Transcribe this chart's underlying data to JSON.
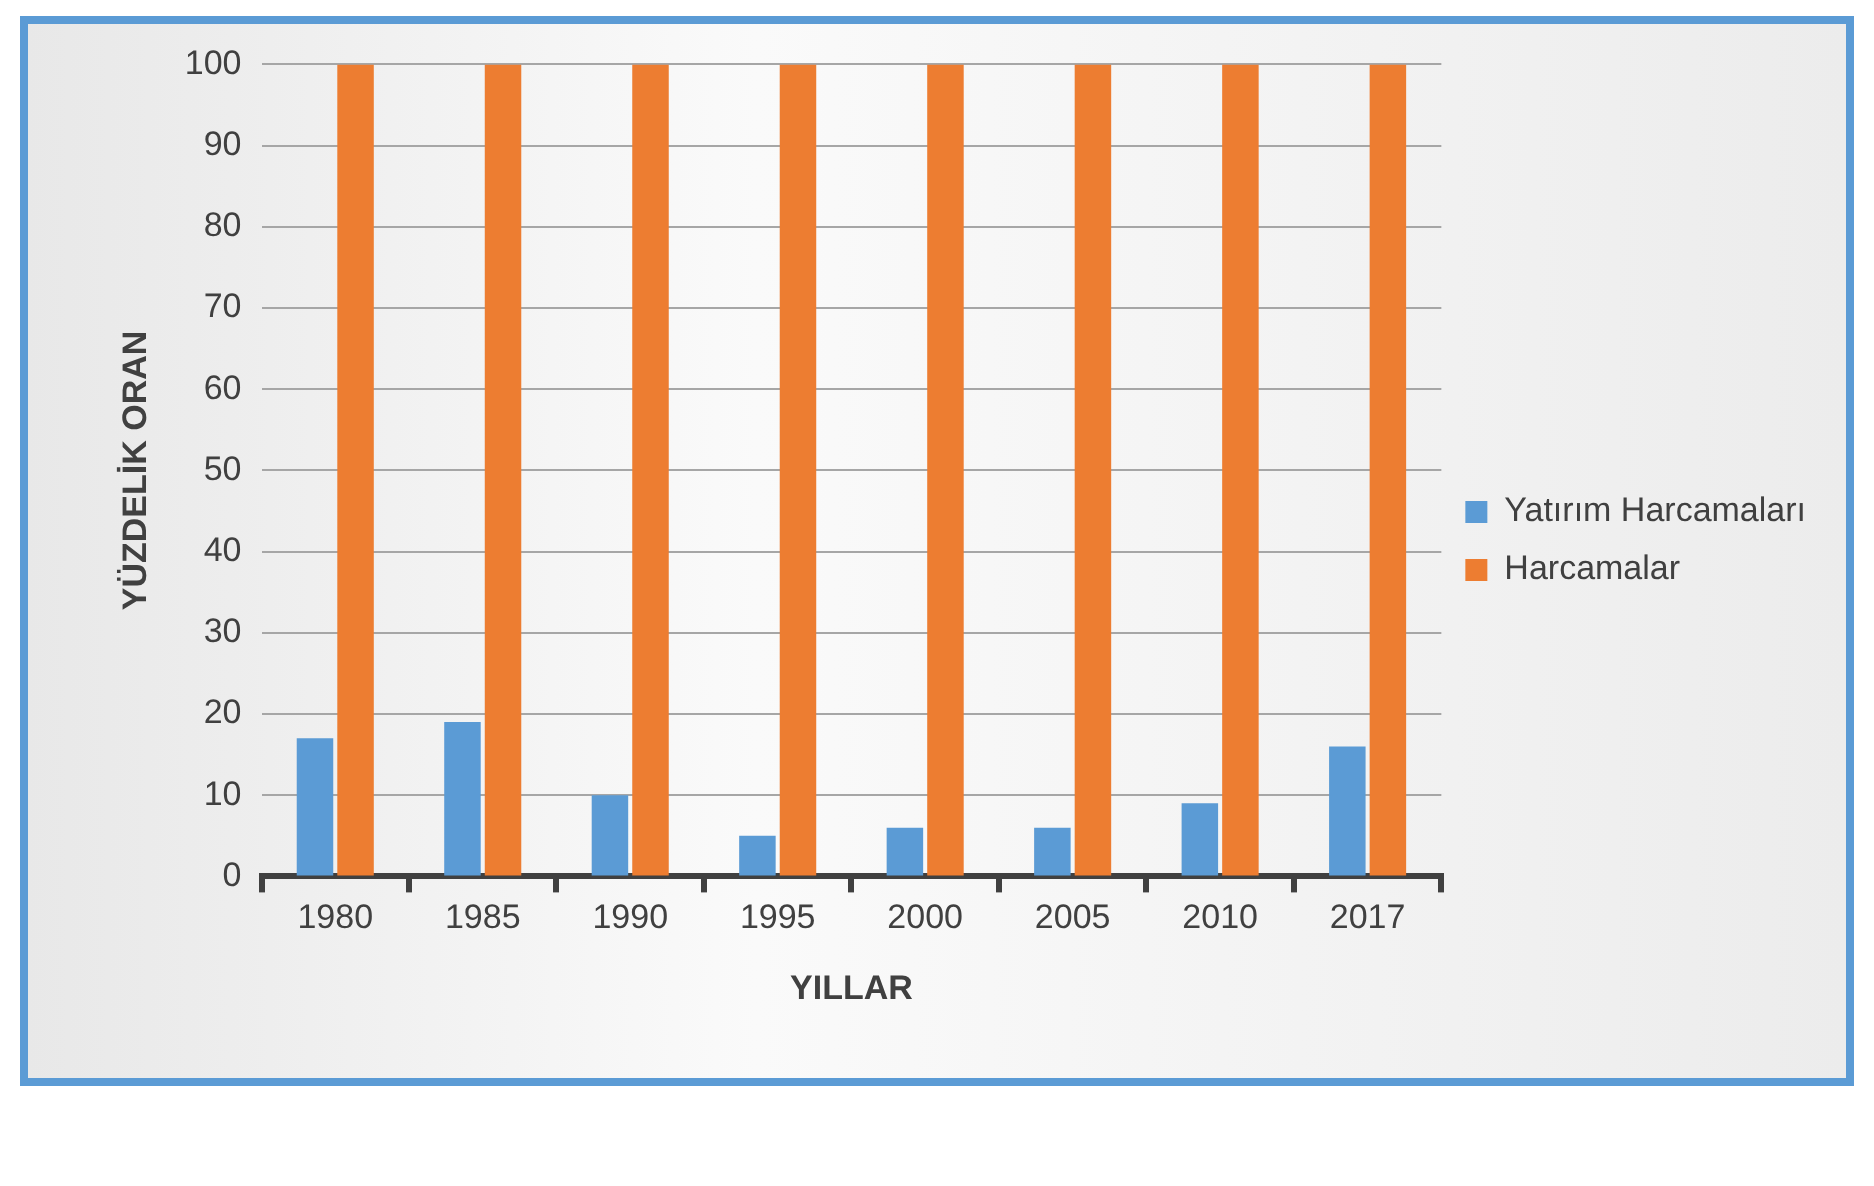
{
  "chart_data": {
    "type": "bar",
    "xlabel": "YILLAR",
    "ylabel": "YÜZDELİK ORAN",
    "categories": [
      "1980",
      "1985",
      "1990",
      "1995",
      "2000",
      "2005",
      "2010",
      "2017"
    ],
    "series": [
      {
        "name": "Yatırım Harcamaları",
        "color": "#5b9bd5",
        "values": [
          17,
          19,
          10,
          5,
          6,
          6,
          9,
          16
        ]
      },
      {
        "name": "Harcamalar",
        "color": "#ed7d31",
        "values": [
          100,
          100,
          100,
          100,
          100,
          100,
          100,
          100
        ]
      }
    ],
    "ylim": [
      0,
      100
    ],
    "yticks": [
      0,
      10,
      20,
      30,
      40,
      50,
      60,
      70,
      80,
      90,
      100
    ],
    "grid": "y",
    "legend": "right"
  }
}
